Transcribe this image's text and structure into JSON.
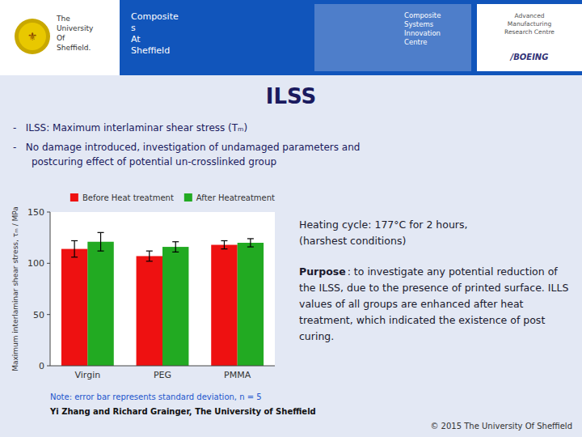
{
  "chart_data": {
    "type": "bar",
    "title": "ILSS",
    "categories": [
      "Virgin",
      "PEG",
      "PMMA"
    ],
    "series": [
      {
        "name": "Before Heat treatment",
        "color": "#EE1111",
        "values": [
          114,
          107,
          118
        ],
        "errors": [
          8,
          5,
          4
        ]
      },
      {
        "name": "After Heatreatment",
        "color": "#22AA22",
        "values": [
          121,
          116,
          120
        ],
        "errors": [
          9,
          5,
          4
        ]
      }
    ],
    "ylim": [
      0,
      150
    ],
    "yticks": [
      0,
      50,
      100,
      150
    ],
    "ylabel": "Maximum interlaminar shear stress, τₘ / MPa",
    "legend": "upper right",
    "annotations": [
      "⚜",
      "The\nUniversity\nOf\nSheffield.",
      "Composite\ns\nAt\nSheffield",
      "Composite\nSystems\nInnovation\nCentre",
      "Advanced\nManufacturing\nResearch Centre",
      "/BOEING",
      "-   ILSS: Maximum interlaminar shear stress (Tₘ)",
      "-   No damage introduced, investigation of undamaged parameters and\n      postcuring effect of potential un-crosslinked group",
      "Heating cycle: 177°C for 2 hours,\n(harshest conditions)",
      "Purpose",
      ": to investigate any potential reduction of the ILSS, due to the presence of printed surface. ILLS values of all groups are enhanced after heat treatment, which indicated the existence of post curing.",
      "Note: error bar represents standard deviation, n = 5",
      "Yi Zhang and Richard Grainger, The University of Sheffield",
      "© 2015 The University Of Sheffield"
    ]
  }
}
